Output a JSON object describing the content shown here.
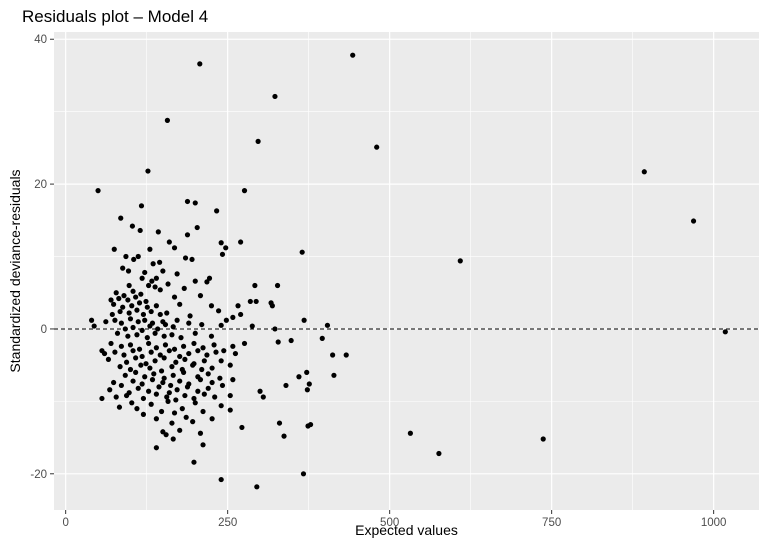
{
  "chart_data": {
    "type": "scatter",
    "title": "Residuals plot – Model 4",
    "xlabel": "Expected values",
    "ylabel": "Standardized deviance-residuals",
    "xlim": [
      -18,
      1070
    ],
    "ylim": [
      -25,
      41
    ],
    "x_ticks": [
      0,
      250,
      500,
      750,
      1000
    ],
    "x_tick_labels": [
      "0",
      "250",
      "500",
      "750",
      "1000"
    ],
    "y_ticks": [
      -20,
      0,
      20,
      40
    ],
    "y_tick_labels": [
      "-20",
      "0",
      "20",
      "40"
    ],
    "reference_line": {
      "y": 0,
      "style": "dashed"
    },
    "grid": true,
    "legend": "none",
    "colors": {
      "panel_background": "#ebebeb",
      "grid": "#ffffff",
      "points": "#000000"
    },
    "points": [
      [
        443,
        37.8
      ],
      [
        207,
        36.6
      ],
      [
        323,
        32.1
      ],
      [
        157,
        28.8
      ],
      [
        297,
        25.9
      ],
      [
        480,
        25.1
      ],
      [
        127,
        21.8
      ],
      [
        893,
        21.7
      ],
      [
        50,
        19.1
      ],
      [
        276,
        19.1
      ],
      [
        969,
        14.9
      ],
      [
        188,
        17.6
      ],
      [
        200,
        17.4
      ],
      [
        117,
        17.0
      ],
      [
        85,
        15.3
      ],
      [
        233,
        16.3
      ],
      [
        103,
        14.2
      ],
      [
        203,
        14.0
      ],
      [
        115,
        13.6
      ],
      [
        143,
        13.4
      ],
      [
        188,
        13.0
      ],
      [
        75,
        11.0
      ],
      [
        130,
        11.0
      ],
      [
        160,
        12.0
      ],
      [
        168,
        11.2
      ],
      [
        240,
        11.9
      ],
      [
        247,
        11.2
      ],
      [
        270,
        12.0
      ],
      [
        365,
        10.6
      ],
      [
        609,
        9.4
      ],
      [
        93,
        10.0
      ],
      [
        105,
        9.6
      ],
      [
        112,
        10.0
      ],
      [
        135,
        9.0
      ],
      [
        145,
        9.2
      ],
      [
        185,
        9.8
      ],
      [
        195,
        9.6
      ],
      [
        242,
        10.3
      ],
      [
        88,
        8.4
      ],
      [
        97,
        8.0
      ],
      [
        122,
        7.8
      ],
      [
        150,
        8.0
      ],
      [
        172,
        7.6
      ],
      [
        118,
        7.0
      ],
      [
        133,
        6.6
      ],
      [
        140,
        7.0
      ],
      [
        158,
        6.2
      ],
      [
        200,
        6.6
      ],
      [
        222,
        7.0
      ],
      [
        218,
        6.5
      ],
      [
        292,
        6.0
      ],
      [
        327,
        6.0
      ],
      [
        98,
        6.0
      ],
      [
        128,
        6.0
      ],
      [
        78,
        5.0
      ],
      [
        90,
        4.6
      ],
      [
        104,
        5.2
      ],
      [
        116,
        4.8
      ],
      [
        138,
        5.8
      ],
      [
        146,
        5.4
      ],
      [
        183,
        5.6
      ],
      [
        70,
        4.0
      ],
      [
        82,
        4.2
      ],
      [
        96,
        4.0
      ],
      [
        108,
        4.4
      ],
      [
        124,
        3.8
      ],
      [
        168,
        4.4
      ],
      [
        208,
        4.6
      ],
      [
        285,
        3.8
      ],
      [
        294,
        3.8
      ],
      [
        74,
        3.4
      ],
      [
        88,
        3.0
      ],
      [
        102,
        3.2
      ],
      [
        114,
        3.6
      ],
      [
        126,
        3.0
      ],
      [
        140,
        3.2
      ],
      [
        176,
        3.4
      ],
      [
        225,
        3.2
      ],
      [
        266,
        3.2
      ],
      [
        317,
        3.6
      ],
      [
        319,
        3.2
      ],
      [
        72,
        2.0
      ],
      [
        84,
        2.4
      ],
      [
        98,
        2.2
      ],
      [
        110,
        2.6
      ],
      [
        120,
        2.0
      ],
      [
        132,
        2.4
      ],
      [
        146,
        2.0
      ],
      [
        156,
        2.2
      ],
      [
        192,
        1.8
      ],
      [
        236,
        2.5
      ],
      [
        258,
        1.6
      ],
      [
        270,
        2.0
      ],
      [
        62,
        1.0
      ],
      [
        76,
        1.2
      ],
      [
        86,
        0.8
      ],
      [
        100,
        1.4
      ],
      [
        112,
        1.0
      ],
      [
        122,
        1.2
      ],
      [
        134,
        0.8
      ],
      [
        150,
        1.0
      ],
      [
        172,
        1.2
      ],
      [
        248,
        1.2
      ],
      [
        368,
        1.2
      ],
      [
        404,
        0.5
      ],
      [
        40,
        1.2
      ],
      [
        44,
        0.4
      ],
      [
        92,
        0.0
      ],
      [
        104,
        0.2
      ],
      [
        118,
        -0.2
      ],
      [
        130,
        0.4
      ],
      [
        142,
        0.0
      ],
      [
        154,
        0.6
      ],
      [
        166,
        0.3
      ],
      [
        190,
        0.8
      ],
      [
        210,
        0.6
      ],
      [
        240,
        0.5
      ],
      [
        288,
        0.4
      ],
      [
        323,
        0.0
      ],
      [
        1018,
        -0.4
      ],
      [
        80,
        -0.6
      ],
      [
        96,
        -1.0
      ],
      [
        110,
        -0.8
      ],
      [
        126,
        -1.2
      ],
      [
        138,
        -0.6
      ],
      [
        152,
        -1.0
      ],
      [
        164,
        -0.8
      ],
      [
        178,
        -1.2
      ],
      [
        200,
        -0.6
      ],
      [
        225,
        -1.0
      ],
      [
        328,
        -1.8
      ],
      [
        348,
        -1.6
      ],
      [
        396,
        -1.3
      ],
      [
        70,
        -2.0
      ],
      [
        86,
        -2.4
      ],
      [
        100,
        -2.2
      ],
      [
        114,
        -2.8
      ],
      [
        128,
        -2.0
      ],
      [
        140,
        -2.6
      ],
      [
        154,
        -2.2
      ],
      [
        168,
        -2.8
      ],
      [
        182,
        -2.4
      ],
      [
        198,
        -2.0
      ],
      [
        212,
        -2.6
      ],
      [
        229,
        -2.2
      ],
      [
        244,
        -3.0
      ],
      [
        258,
        -2.4
      ],
      [
        276,
        -2.0
      ],
      [
        56,
        -3.0
      ],
      [
        60,
        -3.4
      ],
      [
        76,
        -3.2
      ],
      [
        90,
        -3.6
      ],
      [
        104,
        -3.0
      ],
      [
        118,
        -3.8
      ],
      [
        132,
        -3.2
      ],
      [
        146,
        -3.6
      ],
      [
        160,
        -3.0
      ],
      [
        176,
        -3.8
      ],
      [
        190,
        -3.4
      ],
      [
        204,
        -3.0
      ],
      [
        218,
        -3.6
      ],
      [
        232,
        -3.2
      ],
      [
        262,
        -3.4
      ],
      [
        412,
        -3.6
      ],
      [
        433,
        -3.6
      ],
      [
        66,
        -4.2
      ],
      [
        94,
        -4.6
      ],
      [
        108,
        -4.0
      ],
      [
        124,
        -4.8
      ],
      [
        138,
        -4.4
      ],
      [
        152,
        -4.0
      ],
      [
        170,
        -4.6
      ],
      [
        184,
        -4.2
      ],
      [
        198,
        -4.8
      ],
      [
        214,
        -4.4
      ],
      [
        240,
        -4.4
      ],
      [
        84,
        -5.2
      ],
      [
        100,
        -5.6
      ],
      [
        116,
        -5.0
      ],
      [
        130,
        -5.4
      ],
      [
        148,
        -5.8
      ],
      [
        164,
        -5.2
      ],
      [
        180,
        -5.6
      ],
      [
        196,
        -5.0
      ],
      [
        210,
        -5.6
      ],
      [
        226,
        -5.4
      ],
      [
        254,
        -5.0
      ],
      [
        92,
        -6.4
      ],
      [
        108,
        -6.0
      ],
      [
        122,
        -6.6
      ],
      [
        136,
        -6.2
      ],
      [
        152,
        -6.8
      ],
      [
        166,
        -6.4
      ],
      [
        182,
        -6.0
      ],
      [
        204,
        -6.6
      ],
      [
        220,
        -6.2
      ],
      [
        238,
        -6.8
      ],
      [
        360,
        -6.6
      ],
      [
        372,
        -6.0
      ],
      [
        414,
        -6.4
      ],
      [
        74,
        -7.4
      ],
      [
        86,
        -7.8
      ],
      [
        104,
        -7.2
      ],
      [
        118,
        -7.6
      ],
      [
        134,
        -7.0
      ],
      [
        150,
        -7.4
      ],
      [
        162,
        -7.8
      ],
      [
        176,
        -7.2
      ],
      [
        190,
        -7.6
      ],
      [
        208,
        -7.0
      ],
      [
        226,
        -7.4
      ],
      [
        242,
        -7.8
      ],
      [
        258,
        -7.0
      ],
      [
        68,
        -8.4
      ],
      [
        98,
        -8.8
      ],
      [
        112,
        -8.2
      ],
      [
        128,
        -8.6
      ],
      [
        144,
        -8.0
      ],
      [
        160,
        -8.8
      ],
      [
        172,
        -8.4
      ],
      [
        188,
        -8.0
      ],
      [
        204,
        -8.6
      ],
      [
        220,
        -8.2
      ],
      [
        300,
        -8.6
      ],
      [
        340,
        -7.8
      ],
      [
        373,
        -8.4
      ],
      [
        376,
        -7.6
      ],
      [
        78,
        -9.4
      ],
      [
        94,
        -9.2
      ],
      [
        120,
        -9.6
      ],
      [
        140,
        -9.0
      ],
      [
        156,
        -9.4
      ],
      [
        170,
        -9.8
      ],
      [
        184,
        -9.2
      ],
      [
        198,
        -9.6
      ],
      [
        214,
        -9.0
      ],
      [
        230,
        -9.4
      ],
      [
        254,
        -9.2
      ],
      [
        305,
        -9.4
      ],
      [
        56,
        -9.6
      ],
      [
        102,
        -10.2
      ],
      [
        132,
        -10.4
      ],
      [
        158,
        -10.0
      ],
      [
        200,
        -10.2
      ],
      [
        240,
        -10.6
      ],
      [
        83,
        -10.8
      ],
      [
        110,
        -11.0
      ],
      [
        148,
        -11.4
      ],
      [
        180,
        -11.0
      ],
      [
        212,
        -11.4
      ],
      [
        254,
        -11.2
      ],
      [
        120,
        -11.8
      ],
      [
        168,
        -11.6
      ],
      [
        186,
        -12.2
      ],
      [
        226,
        -12.4
      ],
      [
        140,
        -12.4
      ],
      [
        164,
        -13.0
      ],
      [
        196,
        -12.8
      ],
      [
        272,
        -13.6
      ],
      [
        330,
        -13.0
      ],
      [
        374,
        -13.4
      ],
      [
        378,
        -13.2
      ],
      [
        150,
        -14.2
      ],
      [
        176,
        -14.0
      ],
      [
        208,
        -14.4
      ],
      [
        337,
        -14.8
      ],
      [
        532,
        -14.4
      ],
      [
        155,
        -14.6
      ],
      [
        166,
        -15.2
      ],
      [
        212,
        -16.0
      ],
      [
        140,
        -16.4
      ],
      [
        198,
        -18.4
      ],
      [
        576,
        -17.2
      ],
      [
        737,
        -15.2
      ],
      [
        367,
        -20.0
      ],
      [
        240,
        -20.8
      ],
      [
        295,
        -21.8
      ]
    ]
  }
}
